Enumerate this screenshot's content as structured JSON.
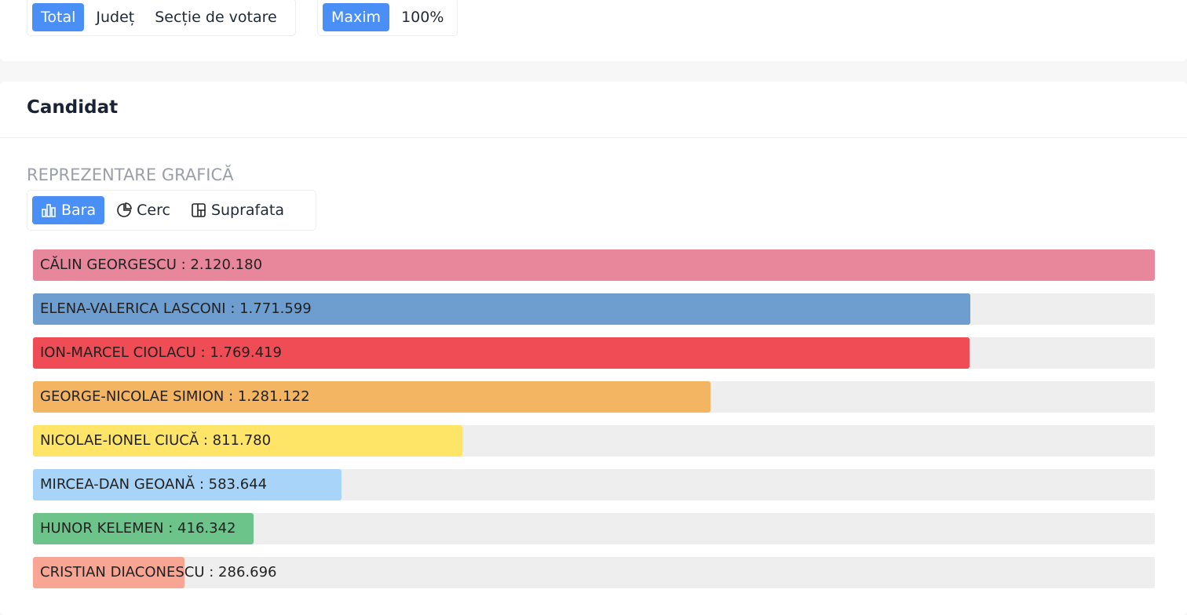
{
  "filters": {
    "scope": [
      "Total",
      "Județ",
      "Secție de votare"
    ],
    "scale": [
      "Maxim",
      "100%"
    ]
  },
  "card": {
    "title": "Candidat",
    "section_label": "REPREZENTARE GRAFICĂ",
    "view_tabs": [
      "Bara",
      "Cerc",
      "Suprafata"
    ]
  },
  "chart_data": {
    "type": "bar",
    "orientation": "horizontal",
    "label_separator": " : ",
    "categories": [
      "CĂLIN GEORGESCU",
      "ELENA-VALERICA LASCONI",
      "ION-MARCEL CIOLACU",
      "GEORGE-NICOLAE SIMION",
      "NICOLAE-IONEL CIUCĂ",
      "MIRCEA-DAN GEOANĂ",
      "HUNOR KELEMEN",
      "CRISTIAN DIACONESCU"
    ],
    "values": [
      2120180,
      1771599,
      1769419,
      1281122,
      811780,
      583644,
      416342,
      286696
    ],
    "value_labels": [
      "2.120.180",
      "1.771.599",
      "1.769.419",
      "1.281.122",
      "811.780",
      "583.644",
      "416.342",
      "286.696"
    ],
    "colors": [
      "#e8879c",
      "#6d9ecf",
      "#ef4c55",
      "#f4b563",
      "#ffe567",
      "#a7d4f8",
      "#6cc48a",
      "#f9a594"
    ]
  }
}
